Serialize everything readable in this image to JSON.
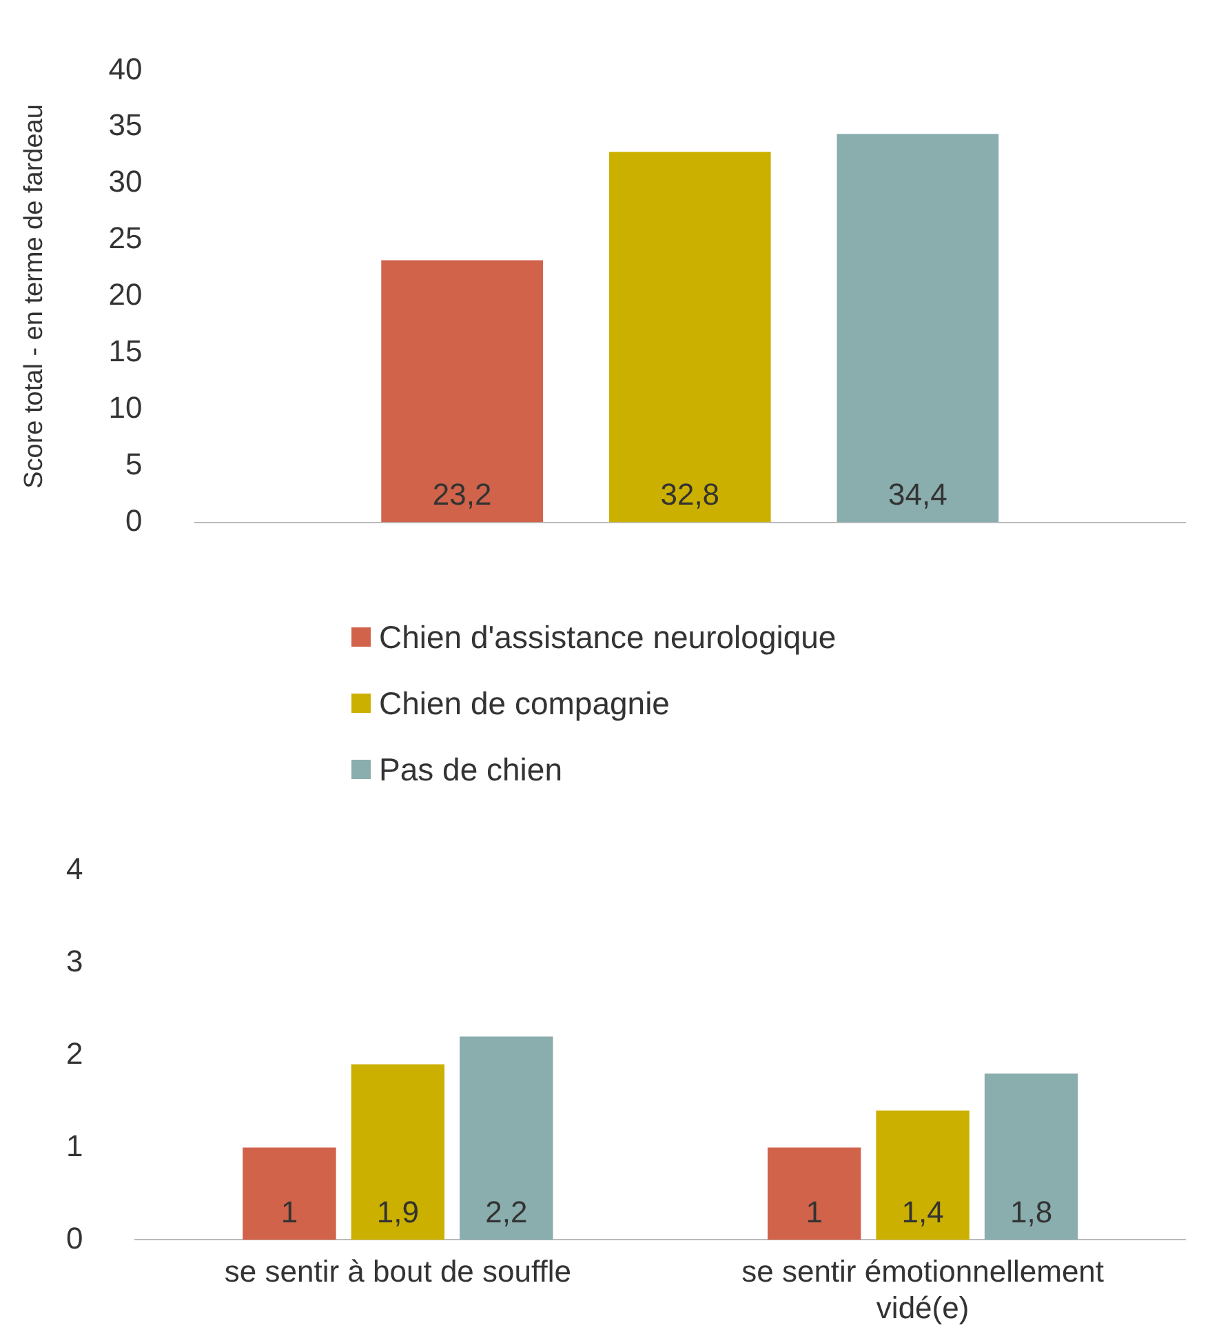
{
  "chart_data": [
    {
      "type": "bar",
      "ylabel": "Score total - en terme de fardeau",
      "categories": [
        null
      ],
      "series": [
        {
          "name": "Chien d'assistance neurologique",
          "color": "#d0634a",
          "values": [
            23.2
          ],
          "value_labels": [
            "23,2"
          ]
        },
        {
          "name": "Chien de compagnie",
          "color": "#ccb000",
          "values": [
            32.8
          ],
          "value_labels": [
            "32,8"
          ]
        },
        {
          "name": "Pas de chien",
          "color": "#8aadad",
          "values": [
            34.4
          ],
          "value_labels": [
            "34,4"
          ]
        }
      ],
      "ylim": [
        0,
        40
      ],
      "yticks": [
        0,
        5,
        10,
        15,
        20,
        25,
        30,
        35,
        40
      ],
      "grid": false,
      "legend": "bottom"
    },
    {
      "type": "bar",
      "categories": [
        "se sentir à bout de souffle",
        "se sentir émotionnellement vidé(e)"
      ],
      "series": [
        {
          "color": "#d0634a",
          "values": [
            1,
            1
          ],
          "value_labels": [
            "1",
            "1"
          ]
        },
        {
          "color": "#ccb000",
          "values": [
            1.9,
            1.4
          ],
          "value_labels": [
            "1,9",
            "1,4"
          ]
        },
        {
          "color": "#8aadad",
          "values": [
            2.2,
            1.8
          ],
          "value_labels": [
            "2,2",
            "1,8"
          ]
        }
      ],
      "ylim": [
        0,
        4
      ],
      "yticks": [
        0,
        1,
        2,
        3,
        4
      ],
      "grid": false
    }
  ]
}
